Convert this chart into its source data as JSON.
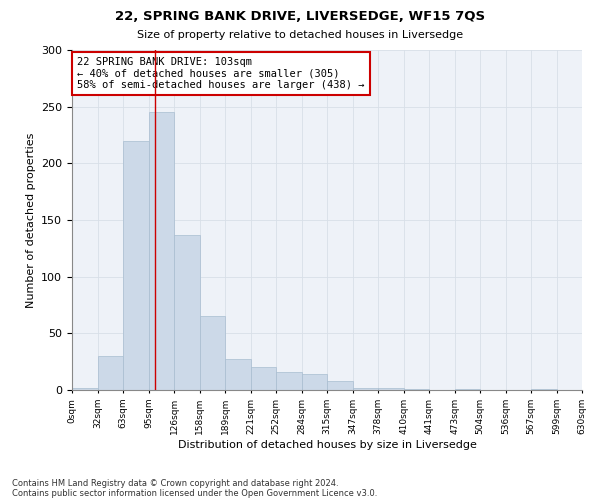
{
  "title": "22, SPRING BANK DRIVE, LIVERSEDGE, WF15 7QS",
  "subtitle": "Size of property relative to detached houses in Liversedge",
  "xlabel": "Distribution of detached houses by size in Liversedge",
  "ylabel": "Number of detached properties",
  "bin_edges": [
    0,
    32,
    63,
    95,
    126,
    158,
    189,
    221,
    252,
    284,
    315,
    347,
    378,
    410,
    441,
    473,
    504,
    536,
    567,
    599,
    630
  ],
  "bar_heights": [
    2,
    30,
    220,
    245,
    137,
    65,
    27,
    20,
    16,
    14,
    8,
    2,
    2,
    1,
    0,
    1,
    0,
    0,
    1,
    0
  ],
  "bar_color": "#ccd9e8",
  "bar_edge_color": "#a8bdd0",
  "plot_bg_color": "#eef2f8",
  "grid_color": "#d8dfe8",
  "vline_x": 103,
  "vline_color": "#cc0000",
  "annotation_text": "22 SPRING BANK DRIVE: 103sqm\n← 40% of detached houses are smaller (305)\n58% of semi-detached houses are larger (438) →",
  "annotation_box_color": "white",
  "annotation_box_edge": "#cc0000",
  "ylim": [
    0,
    300
  ],
  "yticks": [
    0,
    50,
    100,
    150,
    200,
    250,
    300
  ],
  "footer_line1": "Contains HM Land Registry data © Crown copyright and database right 2024.",
  "footer_line2": "Contains public sector information licensed under the Open Government Licence v3.0."
}
